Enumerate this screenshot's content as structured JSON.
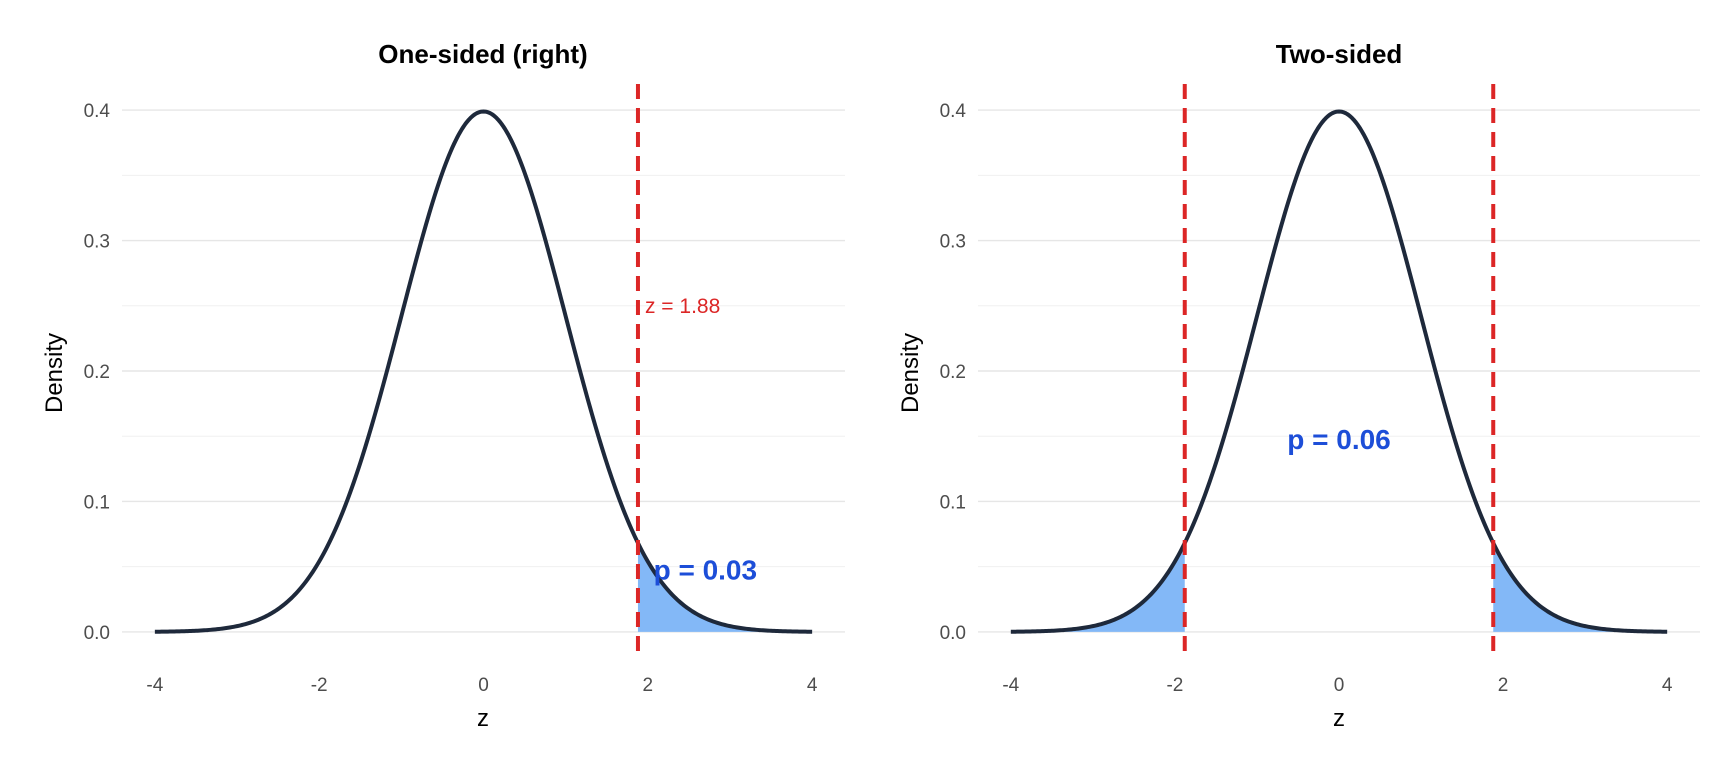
{
  "chart_data": [
    {
      "type": "area",
      "title": "One-sided (right)",
      "xlabel": "z",
      "ylabel": "Density",
      "xlim": [
        -4,
        4
      ],
      "ylim": [
        0,
        0.4
      ],
      "x_ticks": [
        "-4",
        "-2",
        "0",
        "2",
        "4"
      ],
      "y_ticks": [
        "0.0",
        "0.1",
        "0.2",
        "0.3",
        "0.4"
      ],
      "grid": true,
      "curve": "standard normal density",
      "critical_values": [
        1.88
      ],
      "shaded_regions": [
        [
          1.88,
          4
        ]
      ],
      "annotations": [
        {
          "text": "z = 1.88",
          "x": 1.88,
          "y": 0.25,
          "color": "#dc2626"
        },
        {
          "text": "p = 0.03",
          "x": 2.7,
          "y": 0.048,
          "color": "#1d4ed8"
        }
      ]
    },
    {
      "type": "area",
      "title": "Two-sided",
      "xlabel": "z",
      "ylabel": "Density",
      "xlim": [
        -4,
        4
      ],
      "ylim": [
        0,
        0.4
      ],
      "x_ticks": [
        "-4",
        "-2",
        "0",
        "2",
        "4"
      ],
      "y_ticks": [
        "0.0",
        "0.1",
        "0.2",
        "0.3",
        "0.4"
      ],
      "grid": true,
      "curve": "standard normal density",
      "critical_values": [
        -1.88,
        1.88
      ],
      "shaded_regions": [
        [
          -4,
          -1.88
        ],
        [
          1.88,
          4
        ]
      ],
      "annotations": [
        {
          "text": "p = 0.06",
          "x": 0,
          "y": 0.148,
          "color": "#1d4ed8"
        }
      ]
    }
  ],
  "colors": {
    "curve": "#1e293b",
    "shade": "#83b8f7",
    "critical_line": "#dc2626",
    "p_text": "#1d4ed8"
  }
}
